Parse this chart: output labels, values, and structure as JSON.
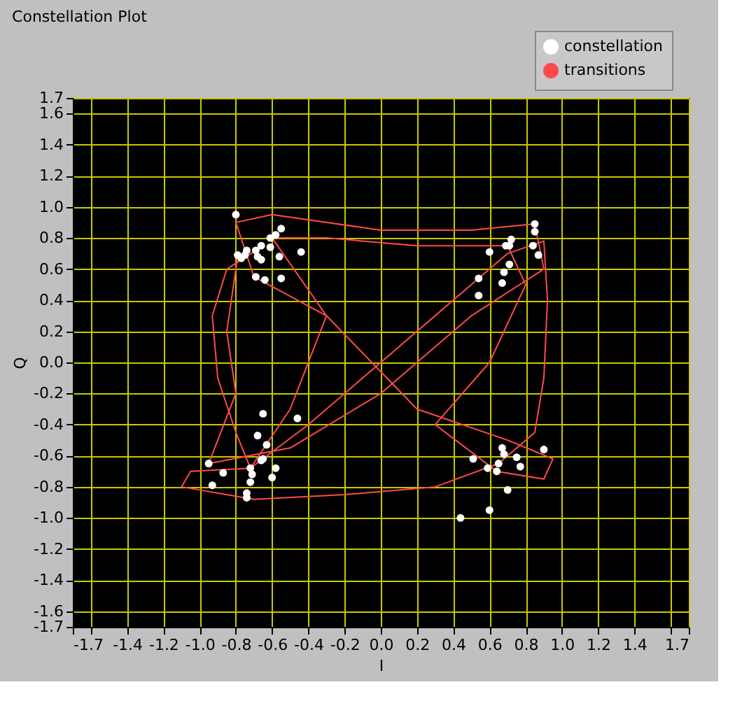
{
  "chart_data": {
    "type": "scatter",
    "title": "Constellation Plot",
    "xlabel": "I",
    "ylabel": "Q",
    "xlim": [
      -1.7,
      1.7
    ],
    "ylim": [
      -1.7,
      1.7
    ],
    "xticks": [
      -1.7,
      {
        "value": -1.6,
        "label": null
      },
      -1.4,
      -1.2,
      {
        "value": -1,
        "label": "-1.0"
      },
      -0.8,
      -0.6,
      -0.4,
      -0.2,
      {
        "value": 0,
        "label": "0.0"
      },
      0.2,
      0.4,
      0.6,
      0.8,
      {
        "value": 1,
        "label": "1.0"
      },
      1.2,
      1.4,
      {
        "value": 1.6,
        "label": null
      },
      1.7
    ],
    "yticks": [
      -1.7,
      -1.6,
      -1.4,
      -1.2,
      {
        "value": -1,
        "label": "-1.0"
      },
      -0.8,
      -0.6,
      -0.4,
      -0.2,
      {
        "value": 0,
        "label": "0.0"
      },
      0.2,
      0.4,
      0.6,
      0.8,
      {
        "value": 1,
        "label": "1.0"
      },
      1.2,
      1.4,
      1.6,
      1.7
    ],
    "grid": true,
    "legend": "top right",
    "marker": "circle",
    "line_style": "solid",
    "series": [
      {
        "name": "constellation",
        "type": "scatter",
        "color": "#ffffff",
        "x": [
          -0.8,
          -0.55,
          -0.58,
          -0.61,
          -0.66,
          -0.61,
          -0.69,
          -0.74,
          -0.75,
          -0.79,
          -0.77,
          -0.68,
          -0.66,
          -0.56,
          -0.44,
          -0.69,
          -0.64,
          -0.55,
          0.85,
          0.85,
          0.72,
          0.69,
          0.71,
          0.84,
          0.6,
          0.87,
          0.71,
          0.68,
          0.54,
          0.67,
          0.54,
          -0.65,
          -0.46,
          -0.68,
          -0.63,
          -0.95,
          -0.65,
          -0.66,
          -0.72,
          -0.58,
          -0.87,
          -0.71,
          -0.6,
          -0.93,
          -0.72,
          -0.74,
          -0.74,
          0.9,
          0.67,
          0.68,
          0.75,
          0.51,
          0.65,
          0.77,
          0.59,
          0.64,
          0.7,
          0.6,
          0.44
        ],
        "values": [
          0.95,
          0.86,
          0.82,
          0.8,
          0.75,
          0.74,
          0.72,
          0.72,
          0.69,
          0.69,
          0.67,
          0.68,
          0.66,
          0.68,
          0.71,
          0.55,
          0.53,
          0.54,
          0.89,
          0.84,
          0.79,
          0.75,
          0.75,
          0.75,
          0.71,
          0.69,
          0.63,
          0.58,
          0.54,
          0.51,
          0.43,
          -0.33,
          -0.36,
          -0.47,
          -0.53,
          -0.65,
          -0.62,
          -0.63,
          -0.68,
          -0.68,
          -0.71,
          -0.72,
          -0.74,
          -0.79,
          -0.77,
          -0.84,
          -0.87,
          -0.56,
          -0.55,
          -0.59,
          -0.61,
          -0.62,
          -0.65,
          -0.67,
          -0.68,
          -0.7,
          -0.82,
          -0.95,
          -1.0
        ]
      },
      {
        "name": "transitions",
        "type": "line",
        "marker": "none",
        "color": "#ff4a4a",
        "x": [
          -0.69,
          -0.85,
          -0.93,
          -0.9,
          -0.8,
          -0.72,
          -0.4,
          0.0,
          0.4,
          0.7,
          0.9,
          0.92,
          0.9,
          0.85,
          0.65,
          0.3,
          -0.2,
          -0.7,
          -1.1,
          -1.05,
          -0.72,
          -0.5,
          -0.3,
          -0.6,
          -0.3,
          0.2,
          0.7,
          0.8,
          0.6,
          0.3,
          0.64,
          0.9,
          0.95,
          0.7,
          0.2,
          -0.3,
          -0.7,
          -0.8,
          -0.6,
          0.0,
          0.5,
          0.85,
          0.9,
          0.5,
          0.0,
          -0.5,
          -0.95,
          -0.8,
          -0.85,
          -0.8,
          -0.79
        ],
        "values": [
          0.72,
          0.6,
          0.3,
          -0.1,
          -0.45,
          -0.68,
          -0.4,
          0.0,
          0.4,
          0.7,
          0.78,
          0.4,
          -0.1,
          -0.45,
          -0.65,
          -0.8,
          -0.85,
          -0.88,
          -0.8,
          -0.7,
          -0.68,
          -0.3,
          0.3,
          0.8,
          0.8,
          0.75,
          0.75,
          0.5,
          0.0,
          -0.4,
          -0.7,
          -0.75,
          -0.62,
          -0.5,
          -0.3,
          0.3,
          0.55,
          0.9,
          0.95,
          0.85,
          0.85,
          0.89,
          0.6,
          0.3,
          -0.2,
          -0.55,
          -0.65,
          -0.2,
          0.2,
          0.6,
          0.69
        ]
      }
    ]
  }
}
